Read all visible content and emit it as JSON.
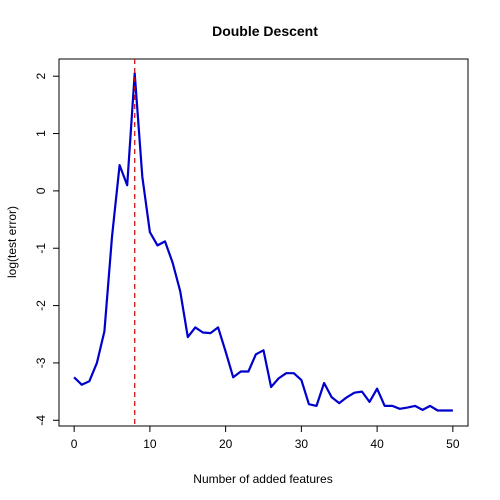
{
  "chart_data": {
    "type": "line",
    "title": "Double Descent",
    "xlabel": "Number of added features",
    "ylabel": "log(test error)",
    "xlim": [
      -2,
      52
    ],
    "ylim": [
      -4.1,
      2.3
    ],
    "xticks": [
      0,
      10,
      20,
      30,
      40,
      50
    ],
    "yticks": [
      -4,
      -3,
      -2,
      -1,
      0,
      1,
      2
    ],
    "grid": false,
    "vline": {
      "x": 8,
      "color": "#cc0000"
    },
    "series": [
      {
        "color": "#0000cc",
        "x": [
          0,
          1,
          2,
          3,
          4,
          5,
          6,
          7,
          8,
          9,
          10,
          11,
          12,
          13,
          14,
          15,
          16,
          17,
          18,
          19,
          20,
          21,
          22,
          23,
          24,
          25,
          26,
          27,
          28,
          29,
          30,
          31,
          32,
          33,
          34,
          35,
          36,
          37,
          38,
          39,
          40,
          41,
          42,
          43,
          44,
          45,
          46,
          47,
          48,
          49,
          50
        ],
        "y": [
          -3.25,
          -3.38,
          -3.32,
          -3.0,
          -2.45,
          -0.8,
          0.45,
          0.1,
          2.05,
          0.25,
          -0.72,
          -0.95,
          -0.88,
          -1.25,
          -1.75,
          -2.55,
          -2.38,
          -2.47,
          -2.48,
          -2.38,
          -2.8,
          -3.25,
          -3.15,
          -3.15,
          -2.85,
          -2.78,
          -3.42,
          -3.27,
          -3.18,
          -3.18,
          -3.3,
          -3.72,
          -3.75,
          -3.35,
          -3.6,
          -3.7,
          -3.6,
          -3.52,
          -3.5,
          -3.68,
          -3.45,
          -3.75,
          -3.75,
          -3.8,
          -3.78,
          -3.75,
          -3.82,
          -3.75,
          -3.83,
          -3.83,
          -3.83
        ]
      }
    ]
  }
}
